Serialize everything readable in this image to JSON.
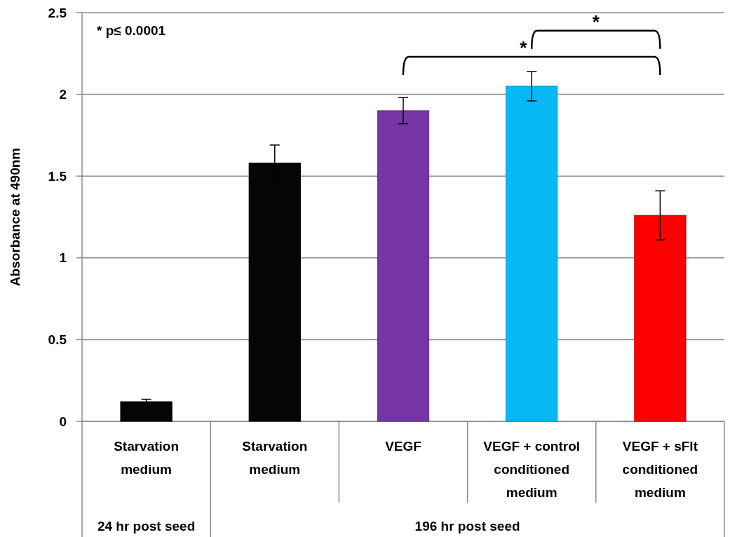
{
  "chart_data": {
    "type": "bar",
    "ylabel": "Absorbance at 490nm",
    "categories": [
      "Starvation medium",
      "Starvation medium",
      "VEGF",
      "VEGF + control conditioned medium",
      "VEGF + sFlt conditioned medium"
    ],
    "values": [
      0.12,
      1.58,
      1.9,
      2.05,
      1.26
    ],
    "errors": [
      0.015,
      0.11,
      0.08,
      0.09,
      0.15
    ],
    "colors": [
      "#050505",
      "#050505",
      "#7636a6",
      "#05b9f5",
      "#fe0000"
    ],
    "ylim": [
      0,
      2.5
    ],
    "yticks": [
      0,
      0.5,
      1,
      1.5,
      2,
      2.5
    ],
    "grid": "y",
    "annotations": [
      "* p≤ 0.0001",
      "24 hr post seed",
      "196 hr post seed",
      "*",
      "*"
    ]
  }
}
